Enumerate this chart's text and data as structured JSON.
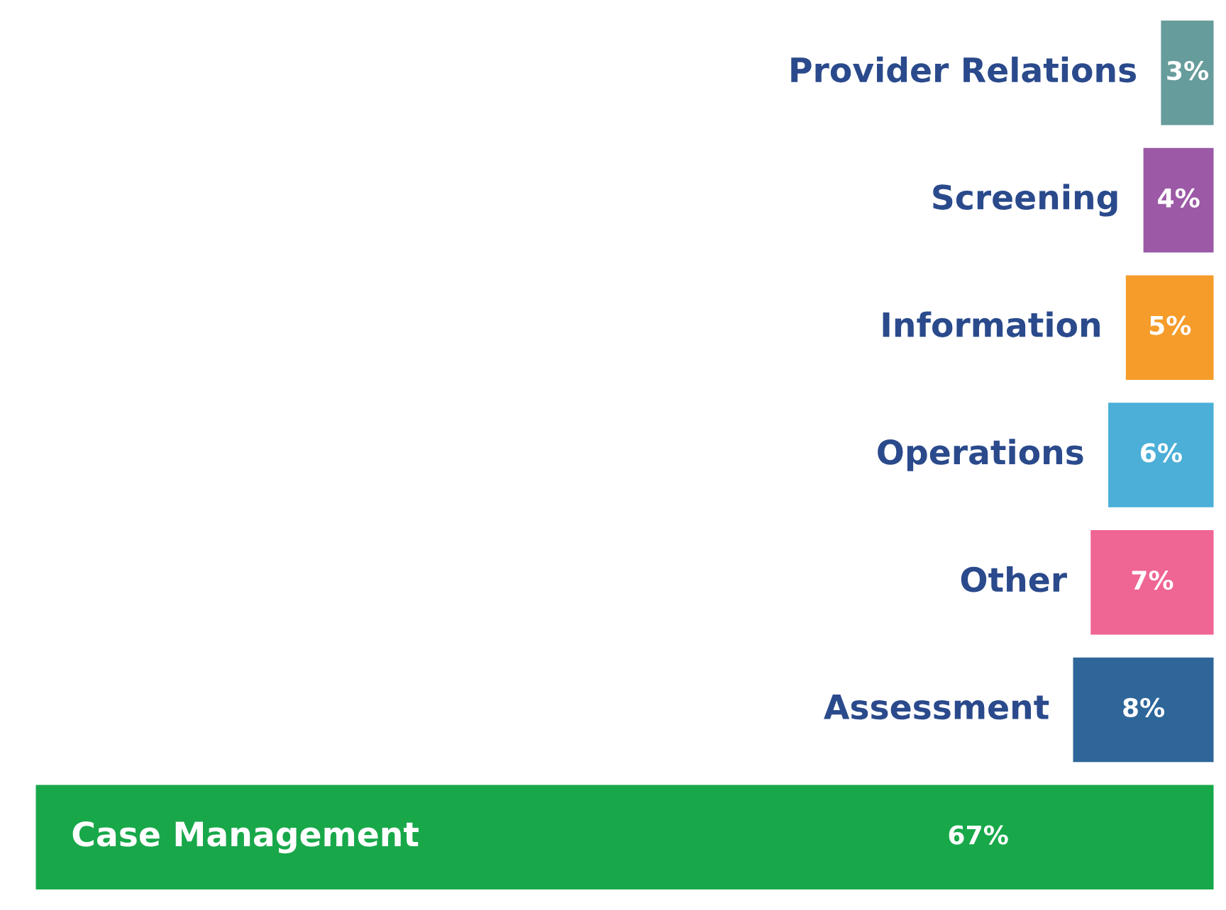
{
  "chart_data": {
    "type": "bar",
    "orientation": "horizontal",
    "categories": [
      "Provider Relations",
      "Screening",
      "Information",
      "Operations",
      "Other",
      "Assessment",
      "Case Management"
    ],
    "values": [
      3,
      4,
      5,
      6,
      7,
      8,
      67
    ],
    "colors": [
      "#669c9b",
      "#9b59a6",
      "#f59c2a",
      "#4bafd8",
      "#ef6593",
      "#2e6699",
      "#18a84a"
    ],
    "value_labels": [
      "3%",
      "4%",
      "5%",
      "6%",
      "7%",
      "8%",
      "67%"
    ]
  }
}
